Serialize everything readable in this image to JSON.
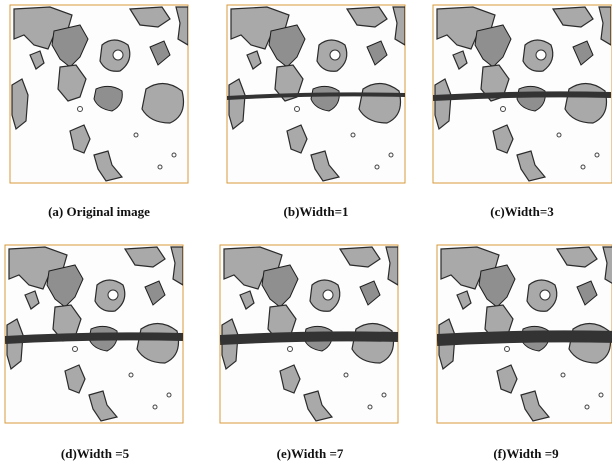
{
  "figure": {
    "panels": [
      {
        "caption": "(a) Original image"
      },
      {
        "caption": "(b)Width=1"
      },
      {
        "caption": "(c)Width=3"
      },
      {
        "caption": "(d)Width =5"
      },
      {
        "caption": "(e)Width =7"
      },
      {
        "caption": "(f)Width =9"
      }
    ]
  }
}
